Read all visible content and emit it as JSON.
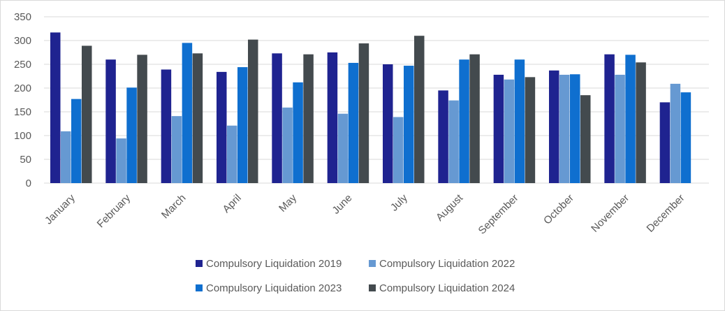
{
  "chart_data": {
    "type": "bar",
    "title": "",
    "xlabel": "",
    "ylabel": "",
    "ylim": [
      0,
      350
    ],
    "yticks": [
      0,
      50,
      100,
      150,
      200,
      250,
      300,
      350
    ],
    "grid": true,
    "legend_position": "bottom",
    "categories": [
      "January",
      "February",
      "March",
      "April",
      "May",
      "June",
      "July",
      "August",
      "September",
      "October",
      "November",
      "December"
    ],
    "series": [
      {
        "name": "Compulsory Liquidation 2019",
        "color": "#1f2390",
        "values": [
          317,
          260,
          239,
          234,
          273,
          275,
          250,
          195,
          228,
          237,
          271,
          170
        ]
      },
      {
        "name": "Compulsory Liquidation 2022",
        "color": "#6699d2",
        "values": [
          109,
          94,
          141,
          121,
          159,
          146,
          139,
          174,
          218,
          228,
          228,
          209
        ]
      },
      {
        "name": "Compulsory Liquidation 2023",
        "color": "#0f6fcf",
        "values": [
          177,
          201,
          295,
          244,
          212,
          253,
          247,
          260,
          260,
          229,
          270,
          191
        ]
      },
      {
        "name": "Compulsory Liquidation 2024",
        "color": "#434a4e",
        "values": [
          289,
          270,
          273,
          302,
          271,
          294,
          310,
          271,
          223,
          185,
          254,
          null
        ]
      }
    ]
  }
}
